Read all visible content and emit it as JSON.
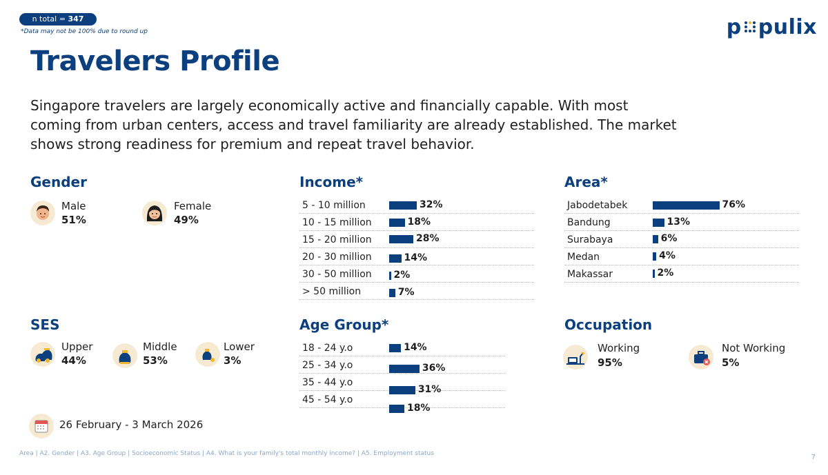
{
  "header": {
    "n_total_label": "n total = ",
    "n_total_value": "347",
    "note": "*Data may not be 100% due to round up",
    "logo_text_left": "p",
    "logo_text_right": "pulix",
    "title": "Travelers Profile",
    "description": "Singapore travelers are largely economically active and financially capable. With most coming from urban centers, access and travel familiarity are already established. The market shows strong readiness for premium and repeat travel behavior."
  },
  "gender": {
    "title": "Gender",
    "items": [
      {
        "label": "Male",
        "value": "51%",
        "icon": "male-avatar-icon"
      },
      {
        "label": "Female",
        "value": "49%",
        "icon": "female-avatar-icon"
      }
    ]
  },
  "ses": {
    "title": "SES",
    "items": [
      {
        "label": "Upper",
        "value": "44%",
        "icon": "money-bags-icon"
      },
      {
        "label": "Middle",
        "value": "53%",
        "icon": "money-bag-icon"
      },
      {
        "label": "Lower",
        "value": "3%",
        "icon": "small-money-bag-icon"
      }
    ]
  },
  "occupation": {
    "title": "Occupation",
    "items": [
      {
        "label": "Working",
        "value": "95%",
        "icon": "desk-lamp-icon"
      },
      {
        "label": "Not Working",
        "value": "5%",
        "icon": "briefcase-x-icon"
      }
    ]
  },
  "date_range": "26 February - 3 March  2026",
  "footer": {
    "source": "Area | A2. Gender | A3. Age Group | Socioeconomic Status | A4. What is your family's total monthly income? | A5. Employment status",
    "page": "7"
  },
  "colors": {
    "primary": "#0b3f7e",
    "icon_bg": "#f6ead2",
    "accent": "#f1b62d"
  },
  "chart_data": [
    {
      "type": "bar",
      "title": "Income*",
      "categories": [
        "5 - 10 million",
        "10 - 15 million",
        "15 - 20 million",
        "20 - 30 million",
        "30 - 50 million",
        "> 50 million"
      ],
      "values": [
        32,
        18,
        28,
        14,
        2,
        7
      ],
      "labels": [
        "32%",
        "18%",
        "28%",
        "14%",
        "2%",
        "7%"
      ]
    },
    {
      "type": "bar",
      "title": "Area*",
      "categories": [
        "Jabodetabek",
        "Bandung",
        "Surabaya",
        "Medan",
        "Makassar"
      ],
      "values": [
        76,
        13,
        6,
        4,
        2
      ],
      "labels": [
        "76%",
        "13%",
        "6%",
        "4%",
        "2%"
      ]
    },
    {
      "type": "bar",
      "title": "Age Group*",
      "categories": [
        "18 - 24 y.o",
        "25 - 34 y.o",
        "35 - 44 y.o",
        "45 - 54 y.o"
      ],
      "values": [
        14,
        36,
        31,
        18
      ],
      "labels": [
        "14%",
        "36%",
        "31%",
        "18%"
      ]
    }
  ]
}
